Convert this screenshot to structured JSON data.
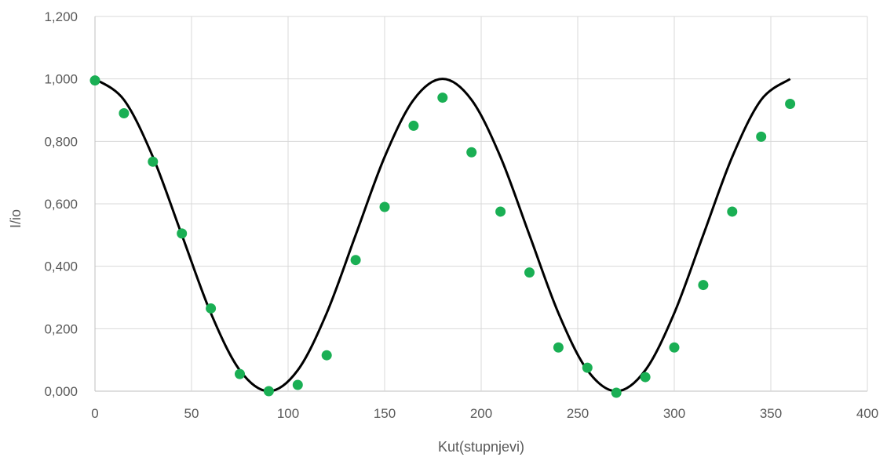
{
  "chart_data": {
    "type": "scatter",
    "xlabel": "Kut(stupnjevi)",
    "ylabel": "I/io",
    "xlim": [
      0,
      400
    ],
    "ylim": [
      0,
      1.2
    ],
    "x_ticks": [
      "0",
      "50",
      "100",
      "150",
      "200",
      "250",
      "300",
      "350",
      "400"
    ],
    "y_ticks": [
      "0,000",
      "0,200",
      "0,400",
      "0,600",
      "0,800",
      "1,000",
      "1,200"
    ],
    "grid": true,
    "legend": "none",
    "series": [
      {
        "kind": "scatter",
        "color": "#1aaf54",
        "x": [
          0,
          15,
          30,
          45,
          60,
          75,
          90,
          105,
          120,
          135,
          150,
          165,
          180,
          195,
          210,
          225,
          240,
          255,
          270,
          285,
          300,
          315,
          330,
          345,
          360
        ],
        "y": [
          0.995,
          0.89,
          0.735,
          0.505,
          0.265,
          0.055,
          0.0,
          0.02,
          0.115,
          0.42,
          0.59,
          0.85,
          0.94,
          0.765,
          0.575,
          0.38,
          0.14,
          0.075,
          -0.005,
          0.045,
          0.14,
          0.34,
          0.575,
          0.815,
          0.92
        ]
      },
      {
        "kind": "line",
        "color": "#000000",
        "x": [
          0,
          15,
          30,
          45,
          60,
          75,
          90,
          105,
          120,
          135,
          150,
          165,
          180,
          195,
          210,
          225,
          240,
          255,
          270,
          285,
          300,
          315,
          330,
          345,
          360
        ],
        "y": [
          1.0,
          0.933,
          0.75,
          0.5,
          0.25,
          0.067,
          0.0,
          0.067,
          0.25,
          0.5,
          0.75,
          0.933,
          1.0,
          0.933,
          0.75,
          0.5,
          0.25,
          0.067,
          0.0,
          0.067,
          0.25,
          0.5,
          0.75,
          0.933,
          1.0
        ]
      }
    ]
  }
}
